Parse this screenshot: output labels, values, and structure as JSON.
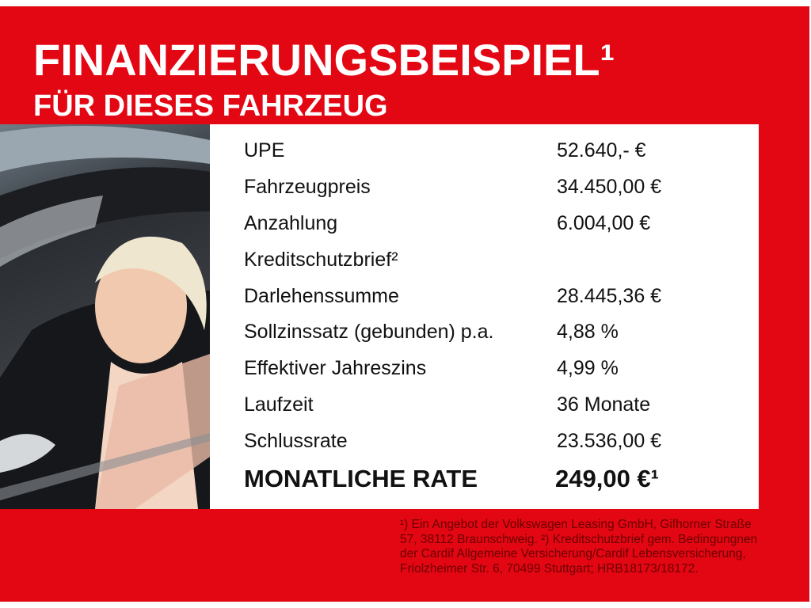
{
  "header": {
    "title": "FINANZIERUNGSBEISPIEL¹",
    "subtitle": "FÜR DIESES FAHRZEUG"
  },
  "colors": {
    "brand_red": "#e30613",
    "table_bg": "#ffffff",
    "title_text": "#ffffff"
  },
  "rows": [
    {
      "label": "UPE",
      "value": "52.640,- €"
    },
    {
      "label": "Fahrzeugpreis",
      "value": "34.450,00 €"
    },
    {
      "label": "Anzahlung",
      "value": "6.004,00 €"
    },
    {
      "label": "Kreditschutzbrief²",
      "value": ""
    },
    {
      "label": "Darlehenssumme",
      "value": "28.445,36 €"
    },
    {
      "label": "Sollzinssatz (gebunden) p.a.",
      "value": "4,88 %"
    },
    {
      "label": "Effektiver Jahreszins",
      "value": "4,99 %"
    },
    {
      "label": "Laufzeit",
      "value": "36 Monate"
    },
    {
      "label": "Schlussrate",
      "value": "23.536,00 €"
    }
  ],
  "total": {
    "label": "MONATLICHE RATE",
    "value": "249,00 €¹"
  },
  "footnote": "¹) Ein Angebot der Volkswagen Leasing GmbH, Gifhorner Straße 57, 38112 Braunschweig. ²) Kreditschutzbrief gem. Bedingungnen der Cardif Allgemeine Versicherung/Cardif Lebensversicherung, Friolzheimer Str. 6, 70499 Stuttgart; HRB18173/18172."
}
